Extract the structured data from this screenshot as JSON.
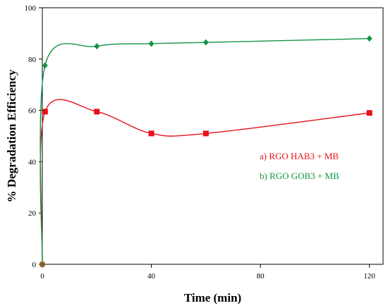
{
  "chart_data": {
    "type": "line",
    "xlabel": "Time (min)",
    "ylabel": "% Degradation Efficiency",
    "xlim": [
      0,
      125
    ],
    "ylim": [
      0,
      100
    ],
    "xticks": [
      0,
      40,
      80,
      120
    ],
    "yticks": [
      0,
      20,
      40,
      60,
      80,
      100
    ],
    "grid": false,
    "legend_position": "right",
    "origin_point": {
      "x": 0,
      "y": 0,
      "color": "#8B5A2B"
    },
    "series": [
      {
        "name": "a) RGO HAB3 + MB",
        "color": "#e8101c",
        "marker": "square",
        "x": [
          1,
          20,
          40,
          60,
          120
        ],
        "y": [
          59.5,
          59.5,
          51,
          51,
          59
        ]
      },
      {
        "name": "b) RGO GOB3 + MB",
        "color": "#129447",
        "marker": "diamond",
        "x": [
          1,
          20,
          40,
          60,
          120
        ],
        "y": [
          77.5,
          85,
          86,
          86.5,
          88
        ]
      }
    ]
  }
}
